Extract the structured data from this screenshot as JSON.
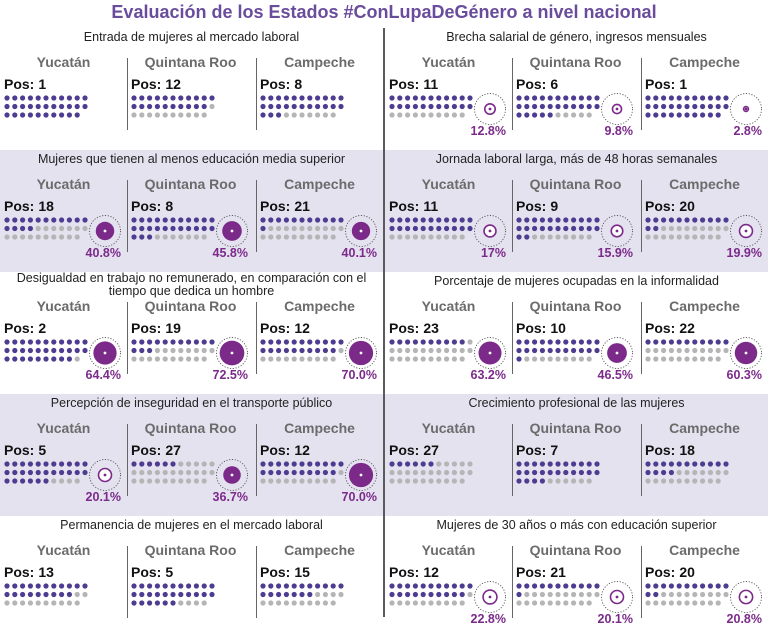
{
  "title": "Evaluación de los Estados #ConLupaDeGénero a nivel nacional",
  "colors": {
    "title": "#6a4c9c",
    "dot_active": "#4d3c8f",
    "dot_inactive": "#b5b5b5",
    "circle_fill": "#7b2a8a",
    "shaded_bg": "#e5e2f0",
    "pct_text": "#7b2a8a"
  },
  "states": [
    "Yucatán",
    "Quintana Roo",
    "Campeche"
  ],
  "chart_data": {
    "type": "table",
    "title": "Evaluación de los Estados #ConLupaDeGénero a nivel nacional",
    "columns": [
      "Yucatán",
      "Quintana Roo",
      "Campeche"
    ],
    "rows": [
      {
        "indicator": "Entrada de mujeres al mercado laboral",
        "positions": [
          1,
          12,
          8
        ],
        "percentages": [
          null,
          null,
          null
        ]
      },
      {
        "indicator": "Mujeres que tienen al menos educación media superior",
        "positions": [
          18,
          8,
          21
        ],
        "percentages": [
          40.8,
          45.8,
          40.1
        ]
      },
      {
        "indicator": "Desigualdad en trabajo no remunerado, en comparación con el tiempo que dedica un hombre",
        "positions": [
          2,
          19,
          12
        ],
        "percentages": [
          64.4,
          72.5,
          70.0
        ]
      },
      {
        "indicator": "Percepción de inseguridad en el transporte público",
        "positions": [
          5,
          27,
          12
        ],
        "percentages": [
          20.1,
          36.7,
          70.0
        ]
      },
      {
        "indicator": "Permanencia de mujeres en el mercado laboral",
        "positions": [
          13,
          5,
          15
        ],
        "percentages": [
          null,
          null,
          null
        ]
      },
      {
        "indicator": "Brecha salarial de género, ingresos mensuales",
        "positions": [
          11,
          6,
          1
        ],
        "percentages": [
          12.8,
          9.8,
          2.8
        ]
      },
      {
        "indicator": "Jornada laboral larga, más de 48 horas semanales",
        "positions": [
          11,
          9,
          20
        ],
        "percentages": [
          17,
          15.9,
          19.9
        ]
      },
      {
        "indicator": "Porcentaje de mujeres ocupadas en la informalidad",
        "positions": [
          23,
          10,
          22
        ],
        "percentages": [
          63.2,
          46.5,
          60.3
        ]
      },
      {
        "indicator": "Crecimiento profesional de las mujeres",
        "positions": [
          27,
          7,
          18
        ],
        "percentages": [
          null,
          null,
          null
        ]
      },
      {
        "indicator": "Mujeres de 30 años o más con educación superior",
        "positions": [
          12,
          21,
          20
        ],
        "percentages": [
          22.8,
          20.1,
          20.8
        ]
      }
    ]
  },
  "sections": [
    {
      "title": "Entrada de mujeres al mercado laboral",
      "shaded": false,
      "cells": [
        {
          "state": "Yucatán",
          "pos_label": "Pos:",
          "pos": 1,
          "pct": null,
          "pct_label": ""
        },
        {
          "state": "Quintana Roo",
          "pos_label": "Pos:",
          "pos": 12,
          "pct": null,
          "pct_label": ""
        },
        {
          "state": "Campeche",
          "pos_label": "Pos:",
          "pos": 8,
          "pct": null,
          "pct_label": ""
        }
      ]
    },
    {
      "title": "Mujeres que tienen al menos educación media superior",
      "shaded": true,
      "cells": [
        {
          "state": "Yucatán",
          "pos_label": "Pos:",
          "pos": 18,
          "pct": 40.8,
          "pct_label": "40.8%"
        },
        {
          "state": "Quintana Roo",
          "pos_label": "Pos:",
          "pos": 8,
          "pct": 45.8,
          "pct_label": "45.8%"
        },
        {
          "state": "Campeche",
          "pos_label": "Pos:",
          "pos": 21,
          "pct": 40.1,
          "pct_label": "40.1%"
        }
      ]
    },
    {
      "title": "Desigualdad en trabajo no remunerado, en comparación con el tiempo que dedica un hombre",
      "shaded": false,
      "cells": [
        {
          "state": "Yucatán",
          "pos_label": "Pos:",
          "pos": 2,
          "pct": 64.4,
          "pct_label": "64.4%"
        },
        {
          "state": "Quintana Roo",
          "pos_label": "Pos:",
          "pos": 19,
          "pct": 72.5,
          "pct_label": "72.5%"
        },
        {
          "state": "Campeche",
          "pos_label": "Pos:",
          "pos": 12,
          "pct": 70.0,
          "pct_label": "70.0%"
        }
      ]
    },
    {
      "title": "Percepción de inseguridad en el transporte público",
      "shaded": true,
      "cells": [
        {
          "state": "Yucatán",
          "pos_label": "Pos:",
          "pos": 5,
          "pct": 20.1,
          "pct_label": "20.1%"
        },
        {
          "state": "Quintana Roo",
          "pos_label": "Pos:",
          "pos": 27,
          "pct": 36.7,
          "pct_label": "36.7%"
        },
        {
          "state": "Campeche",
          "pos_label": "Pos:",
          "pos": 12,
          "pct": 70.0,
          "pct_label": "70.0%"
        }
      ]
    },
    {
      "title": "Permanencia de mujeres en el mercado laboral",
      "shaded": false,
      "cells": [
        {
          "state": "Yucatán",
          "pos_label": "Pos:",
          "pos": 13,
          "pct": null,
          "pct_label": ""
        },
        {
          "state": "Quintana Roo",
          "pos_label": "Pos:",
          "pos": 5,
          "pct": null,
          "pct_label": ""
        },
        {
          "state": "Campeche",
          "pos_label": "Pos:",
          "pos": 15,
          "pct": null,
          "pct_label": ""
        }
      ]
    },
    {
      "title": "Brecha salarial de género, ingresos mensuales",
      "shaded": false,
      "cells": [
        {
          "state": "Yucatán",
          "pos_label": "Pos:",
          "pos": 11,
          "pct": 12.8,
          "pct_label": "12.8%"
        },
        {
          "state": "Quintana Roo",
          "pos_label": "Pos:",
          "pos": 6,
          "pct": 9.8,
          "pct_label": "9.8%"
        },
        {
          "state": "Campeche",
          "pos_label": "Pos:",
          "pos": 1,
          "pct": 2.8,
          "pct_label": "2.8%"
        }
      ]
    },
    {
      "title": "Jornada laboral larga, más de 48 horas semanales",
      "shaded": true,
      "cells": [
        {
          "state": "Yucatán",
          "pos_label": "Pos:",
          "pos": 11,
          "pct": 17,
          "pct_label": "17%"
        },
        {
          "state": "Quintana Roo",
          "pos_label": "Pos:",
          "pos": 9,
          "pct": 15.9,
          "pct_label": "15.9%"
        },
        {
          "state": "Campeche",
          "pos_label": "Pos:",
          "pos": 20,
          "pct": 19.9,
          "pct_label": "19.9%"
        }
      ]
    },
    {
      "title": "Porcentaje de mujeres ocupadas en la informalidad",
      "shaded": false,
      "cells": [
        {
          "state": "Yucatán",
          "pos_label": "Pos:",
          "pos": 23,
          "pct": 63.2,
          "pct_label": "63.2%"
        },
        {
          "state": "Quintana Roo",
          "pos_label": "Pos:",
          "pos": 10,
          "pct": 46.5,
          "pct_label": "46.5%"
        },
        {
          "state": "Campeche",
          "pos_label": "Pos:",
          "pos": 22,
          "pct": 60.3,
          "pct_label": "60.3%"
        }
      ]
    },
    {
      "title": "Crecimiento profesional de las mujeres",
      "shaded": true,
      "cells": [
        {
          "state": "Yucatán",
          "pos_label": "Pos:",
          "pos": 27,
          "pct": null,
          "pct_label": ""
        },
        {
          "state": "Quintana Roo",
          "pos_label": "Pos:",
          "pos": 7,
          "pct": null,
          "pct_label": ""
        },
        {
          "state": "Campeche",
          "pos_label": "Pos:",
          "pos": 18,
          "pct": null,
          "pct_label": ""
        }
      ]
    },
    {
      "title": "Mujeres de 30 años o más con educación superior",
      "shaded": false,
      "cells": [
        {
          "state": "Yucatán",
          "pos_label": "Pos:",
          "pos": 12,
          "pct": 22.8,
          "pct_label": "22.8%"
        },
        {
          "state": "Quintana Roo",
          "pos_label": "Pos:",
          "pos": 21,
          "pct": 20.1,
          "pct_label": "20.1%"
        },
        {
          "state": "Campeche",
          "pos_label": "Pos:",
          "pos": 20,
          "pct": 20.8,
          "pct_label": "20.8%"
        }
      ]
    }
  ]
}
